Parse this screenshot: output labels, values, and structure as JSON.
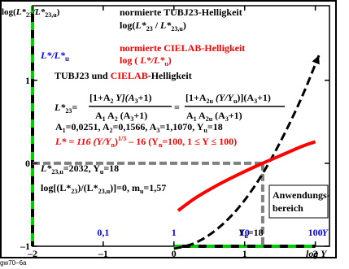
{
  "colors": {
    "black": "#000000",
    "red": "#ff0000",
    "blue": "#0000ff",
    "green": "#00cc00",
    "gray": "#808080"
  },
  "corner_title": {
    "a": "log(",
    "b": "L*",
    "c": "23",
    "d": "/L*",
    "e": "23,u",
    "f": ")"
  },
  "ylabel": {
    "a": "L*/L*",
    "b": "u"
  },
  "header": {
    "line1": "normierte TUBJ23-Helligkeit",
    "line2": {
      "a": "log(",
      "b": "L*",
      "c": "23",
      "d": " / ",
      "e": "L*",
      "f": "23,u",
      "g": ")"
    },
    "line3": "normierte CIELAB-Helligkeit",
    "line4": {
      "a": "log ( ",
      "b": "L*/L*",
      "c": "u",
      "d": ")"
    }
  },
  "tubj": {
    "a": "TUBJ23 und ",
    "b": "CIELAB",
    "c": "-Helligkeit"
  },
  "formula": {
    "lhs": {
      "a": "L*",
      "b": "23",
      "c": "="
    },
    "num1": {
      "a": "[1+A",
      "b": "2",
      "c": " Y](A",
      "d": "3",
      "e": "+1)"
    },
    "den1": {
      "a": "A",
      "b": "1",
      "c": " A",
      "d": "2",
      "e": " (A",
      "f": "3",
      "g": "+1)"
    },
    "eq": "=",
    "num2": {
      "a": "[1+A",
      "b": "2u",
      "c": " (Y/Y",
      "d": "u",
      "e": ")](A",
      "f": "3",
      "g": "+1)"
    },
    "den2": {
      "a": "A",
      "b": "1",
      "c": " A",
      "d": "2u",
      "e": " (A",
      "f": "3",
      "g": "+1)"
    }
  },
  "params": {
    "a": "A",
    "b": "1",
    "c": "=0,0251, A",
    "d": "2",
    "e": "=0,1566, A",
    "f": "3",
    "g": "=1,1070, Y",
    "h": "u",
    "i": "=18"
  },
  "cielab": {
    "a": "L* = 116 (Y/Y",
    "b": "n",
    "c": ")",
    "d": "1/3",
    "e": " – 16   (Y",
    "f": "n",
    "g": "=100, 1 ≤ Y ≤ 100)"
  },
  "luu": {
    "a": "L*",
    "b": "23,u",
    "c": "=2032, Y",
    "d": "u",
    "e": "=18"
  },
  "loge": {
    "a": "log[(L*",
    "b": "23",
    "c": ")/(L*",
    "d": "23,u",
    "e": ")]=0, m",
    "f": "u",
    "g": "=1,57"
  },
  "range": {
    "line1": "Anwendungs-",
    "line2": "bereich"
  },
  "yu_label": {
    "a": "Y",
    "b": "u",
    "c": "=18"
  },
  "footer": "gw70–6a",
  "chart_data": {
    "type": "line",
    "x_axis": {
      "label": "log Y",
      "range": [
        -2,
        2.2
      ],
      "ticks": [
        -2,
        -1,
        0,
        1,
        2
      ],
      "tick_labels": [
        "–2",
        "–1",
        "0",
        "1",
        "2"
      ]
    },
    "y_axis": {
      "range": [
        -1,
        1.9
      ],
      "ticks": [
        -1,
        0,
        1
      ],
      "tick_labels": [
        "–1",
        "0",
        "1"
      ],
      "right_ticks": [
        -1,
        0,
        1
      ]
    },
    "y_values_axis": {
      "label": "Y",
      "values": [
        0.1,
        1,
        10,
        100
      ],
      "labels": [
        "0,1",
        "1",
        "10",
        "100"
      ]
    },
    "reference": {
      "log_Yu": 1.2553,
      "y": 0
    },
    "series": [
      {
        "style": "dashed",
        "color": "black",
        "points": [
          [
            0,
            -1.03
          ],
          [
            0.3,
            -0.96
          ],
          [
            0.6,
            -0.8
          ],
          [
            0.9,
            -0.55
          ],
          [
            1.2,
            -0.2
          ],
          [
            1.5,
            0.25
          ],
          [
            1.8,
            0.78
          ],
          [
            2.05,
            1.3
          ]
        ]
      },
      {
        "style": "solid",
        "color": "red",
        "points": [
          [
            0.06,
            -0.57
          ],
          [
            0.3,
            -0.42
          ],
          [
            0.6,
            -0.27
          ],
          [
            0.9,
            -0.14
          ],
          [
            1.2,
            -0.02
          ],
          [
            1.5,
            0.09
          ],
          [
            1.8,
            0.2
          ],
          [
            2.0,
            0.26
          ]
        ]
      }
    ]
  }
}
